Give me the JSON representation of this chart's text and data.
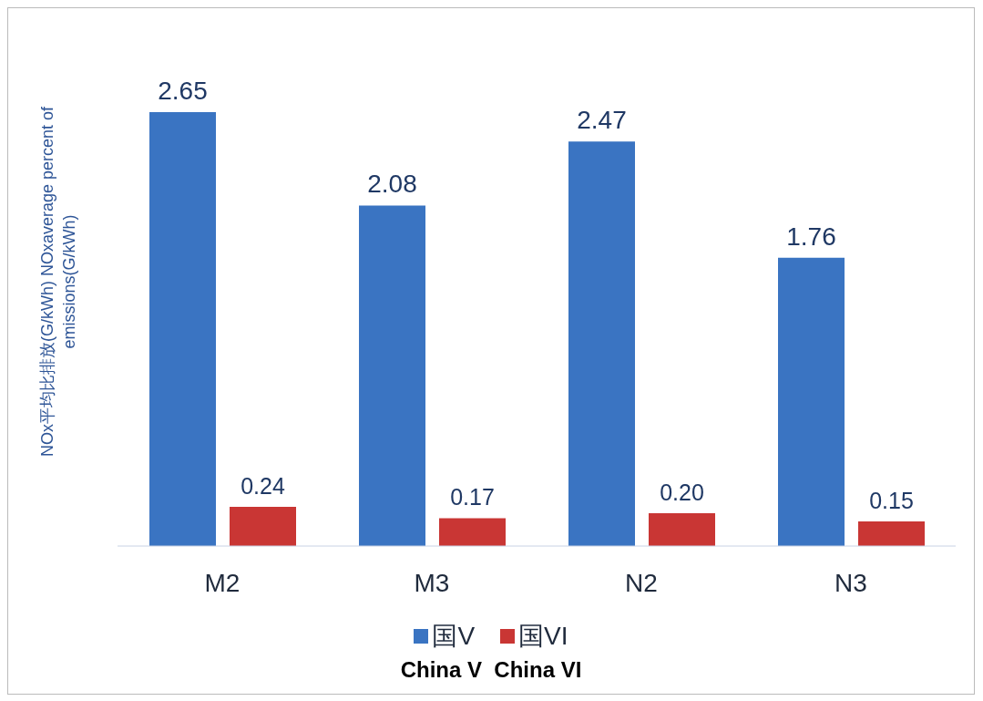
{
  "chart_data": {
    "type": "bar",
    "ylabel": "NOx平均比排放(G/kWh) NOxaverage percent of emissions(G/kWh)",
    "categories": [
      "M2",
      "M3",
      "N2",
      "N3"
    ],
    "series": [
      {
        "name": "国V",
        "color": "#3a74c2",
        "values": [
          2.65,
          2.08,
          2.47,
          1.76
        ],
        "value_labels": [
          "2.65",
          "2.08",
          "2.47",
          "1.76"
        ]
      },
      {
        "name": "国VI",
        "color": "#c93634",
        "values": [
          0.24,
          0.17,
          0.2,
          0.15
        ],
        "value_labels": [
          "0.24",
          "0.17",
          "0.20",
          "0.15"
        ]
      }
    ],
    "legend": "bottom",
    "annotations": [
      "China V  China VI"
    ]
  }
}
